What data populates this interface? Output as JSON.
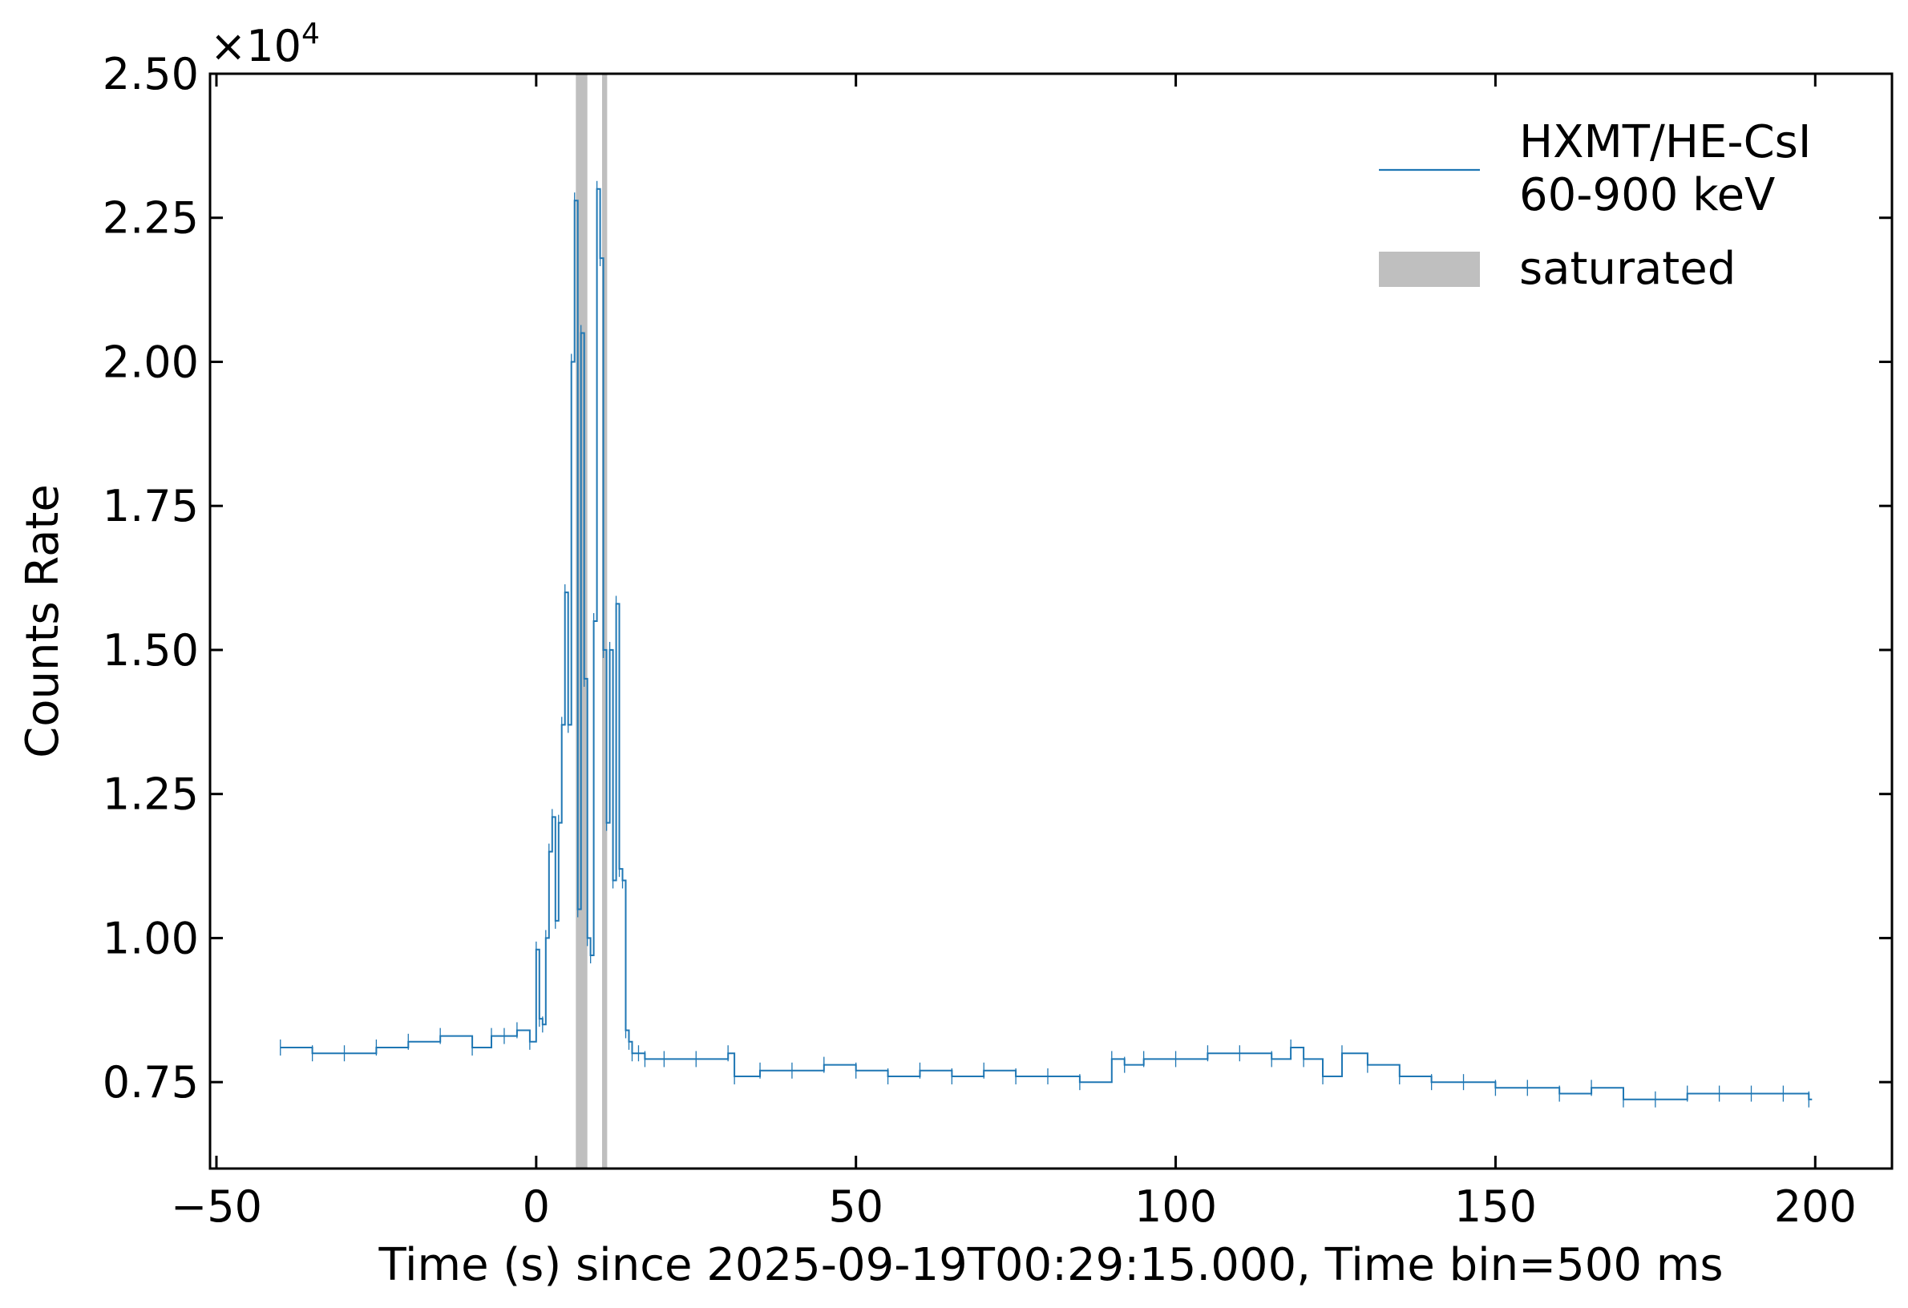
{
  "chart_data": {
    "type": "line",
    "title": "",
    "xlabel": "Time (s) since 2025-09-19T00:29:15.000, Time bin=500 ms",
    "ylabel": "Counts Rate",
    "y_multiplier": "×10",
    "y_multiplier_exp": "4",
    "xlim": [
      -51,
      212
    ],
    "ylim": [
      0.6,
      2.5
    ],
    "xticks": [
      -50,
      0,
      50,
      100,
      150,
      200
    ],
    "xtick_labels": [
      "−50",
      "0",
      "50",
      "100",
      "150",
      "200"
    ],
    "yticks": [
      0.75,
      1.0,
      1.25,
      1.5,
      1.75,
      2.0,
      2.25,
      2.5
    ],
    "ytick_labels": [
      "0.75",
      "1.00",
      "1.25",
      "1.50",
      "1.75",
      "2.00",
      "2.25",
      "2.50"
    ],
    "grid": false,
    "legend_position": "top-right",
    "series": [
      {
        "name": "HXMT/HE-CsI\n60-900 keV",
        "legend_lines": [
          "HXMT/HE-CsI",
          "60-900 keV"
        ],
        "color": "#1f77b4",
        "style": "step",
        "x": [
          -40,
          -35,
          -30,
          -25,
          -20,
          -15,
          -10,
          -7,
          -5,
          -3,
          -1,
          0,
          0.5,
          1,
          1.5,
          2,
          2.5,
          3,
          3.5,
          4,
          4.5,
          5,
          5.5,
          6,
          6.5,
          7,
          7.5,
          8,
          8.5,
          9,
          9.5,
          10,
          10.5,
          11,
          11.5,
          12,
          12.5,
          13,
          13.5,
          14,
          14.5,
          15,
          16,
          17,
          20,
          25,
          30,
          31,
          35,
          40,
          45,
          50,
          55,
          60,
          65,
          70,
          75,
          80,
          85,
          90,
          92,
          95,
          100,
          105,
          110,
          115,
          118,
          120,
          123,
          126,
          130,
          135,
          140,
          145,
          150,
          155,
          160,
          165,
          170,
          175,
          180,
          185,
          190,
          195,
          199
        ],
        "y": [
          0.81,
          0.8,
          0.8,
          0.81,
          0.82,
          0.83,
          0.81,
          0.83,
          0.83,
          0.84,
          0.82,
          0.98,
          0.86,
          0.85,
          1.0,
          1.15,
          1.21,
          1.03,
          1.2,
          1.37,
          1.6,
          1.37,
          2.0,
          2.28,
          1.05,
          2.05,
          1.45,
          1.0,
          0.97,
          1.55,
          2.3,
          2.18,
          1.5,
          1.2,
          1.5,
          1.1,
          1.58,
          1.12,
          1.1,
          0.84,
          0.82,
          0.8,
          0.8,
          0.79,
          0.79,
          0.79,
          0.8,
          0.76,
          0.77,
          0.77,
          0.78,
          0.77,
          0.76,
          0.77,
          0.76,
          0.77,
          0.76,
          0.76,
          0.75,
          0.79,
          0.78,
          0.79,
          0.79,
          0.8,
          0.8,
          0.79,
          0.81,
          0.79,
          0.76,
          0.8,
          0.78,
          0.76,
          0.75,
          0.75,
          0.74,
          0.74,
          0.73,
          0.74,
          0.72,
          0.72,
          0.73,
          0.73,
          0.73,
          0.73,
          0.72
        ]
      }
    ],
    "shaded_regions": {
      "name": "saturated",
      "color": "#bfbfbf",
      "ranges": [
        [
          6.2,
          8.0
        ],
        [
          10.3,
          11.1
        ]
      ]
    }
  }
}
